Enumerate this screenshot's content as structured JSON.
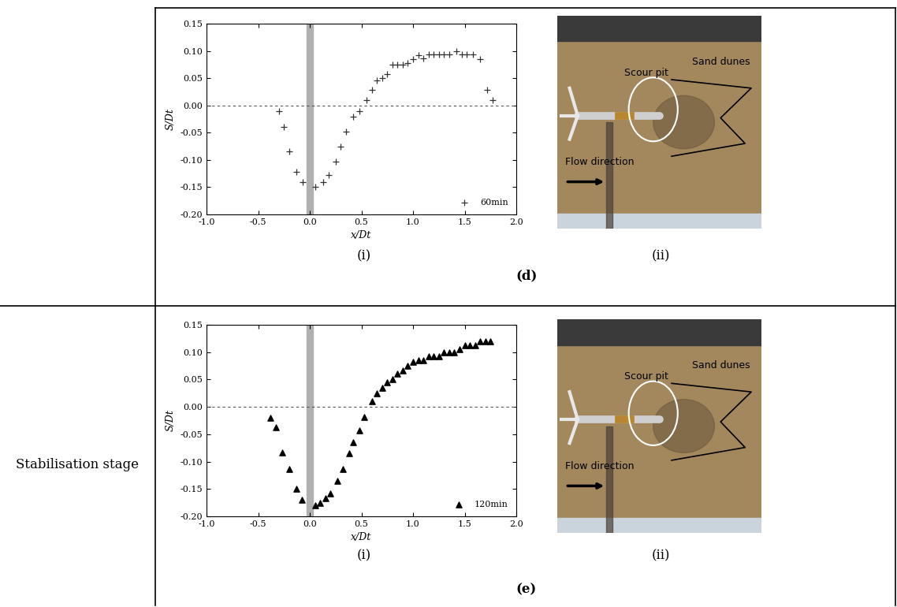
{
  "chart_data": [
    {
      "type": "scatter",
      "x_label": "x/Dt",
      "y_label": "S/Dt",
      "xlim": [
        -1.0,
        2.0
      ],
      "ylim": [
        -0.2,
        0.15
      ],
      "xticks": [
        {
          "value": -1.0,
          "label": "-1.0"
        },
        {
          "value": -0.5,
          "label": "-0.5"
        },
        {
          "value": 0.0,
          "label": "0.0"
        },
        {
          "value": 0.5,
          "label": "0.5"
        },
        {
          "value": 1.0,
          "label": "1.0"
        },
        {
          "value": 1.5,
          "label": "1.5"
        },
        {
          "value": 2.0,
          "label": "2.0"
        }
      ],
      "yticks": [
        {
          "value": -0.2,
          "label": "-0.20"
        },
        {
          "value": -0.15,
          "label": "-0.15"
        },
        {
          "value": -0.1,
          "label": "-0.10"
        },
        {
          "value": -0.05,
          "label": "-0.05"
        },
        {
          "value": 0.0,
          "label": "0.00"
        },
        {
          "value": 0.05,
          "label": "0.05"
        },
        {
          "value": 0.1,
          "label": "0.10"
        },
        {
          "value": 0.15,
          "label": "0.15"
        }
      ],
      "legend": "lower right",
      "series": [
        {
          "name": "60min",
          "color": "#333333",
          "marker": "plus",
          "x": [
            -0.3,
            -0.25,
            -0.2,
            -0.13,
            -0.07,
            0.05,
            0.13,
            0.18,
            0.25,
            0.3,
            0.35,
            0.42,
            0.48,
            0.55,
            0.6,
            0.65,
            0.7,
            0.75,
            0.8,
            0.85,
            0.9,
            0.95,
            1.0,
            1.05,
            1.1,
            1.15,
            1.2,
            1.25,
            1.3,
            1.35,
            1.42,
            1.47,
            1.52,
            1.58,
            1.65,
            1.72,
            1.77
          ],
          "values": [
            -0.01,
            -0.04,
            -0.085,
            -0.122,
            -0.14,
            -0.15,
            -0.14,
            -0.128,
            -0.103,
            -0.075,
            -0.048,
            -0.02,
            -0.01,
            0.01,
            0.028,
            0.046,
            0.05,
            0.057,
            0.075,
            0.075,
            0.075,
            0.078,
            0.085,
            0.092,
            0.087,
            0.093,
            0.093,
            0.093,
            0.093,
            0.093,
            0.1,
            0.093,
            0.093,
            0.093,
            0.085,
            0.028,
            0.01
          ]
        }
      ]
    },
    {
      "type": "scatter",
      "x_label": "x/Dt",
      "y_label": "S/Dt",
      "xlim": [
        -1.0,
        2.0
      ],
      "ylim": [
        -0.2,
        0.15
      ],
      "xticks": [
        {
          "value": -1.0,
          "label": "-1.0"
        },
        {
          "value": -0.5,
          "label": "-0.5"
        },
        {
          "value": 0.0,
          "label": "0.0"
        },
        {
          "value": 0.5,
          "label": "0.5"
        },
        {
          "value": 1.0,
          "label": "1.0"
        },
        {
          "value": 1.5,
          "label": "1.5"
        },
        {
          "value": 2.0,
          "label": "2.0"
        }
      ],
      "yticks": [
        {
          "value": -0.2,
          "label": "-0.20"
        },
        {
          "value": -0.15,
          "label": "-0.15"
        },
        {
          "value": -0.1,
          "label": "-0.10"
        },
        {
          "value": -0.05,
          "label": "-0.05"
        },
        {
          "value": 0.0,
          "label": "0.00"
        },
        {
          "value": 0.05,
          "label": "0.05"
        },
        {
          "value": 0.1,
          "label": "0.10"
        },
        {
          "value": 0.15,
          "label": "0.15"
        }
      ],
      "legend": "lower right",
      "series": [
        {
          "name": "120min",
          "color": "#000000",
          "marker": "triangle",
          "x": [
            -0.38,
            -0.33,
            -0.27,
            -0.2,
            -0.13,
            -0.08,
            0.05,
            0.1,
            0.15,
            0.2,
            0.27,
            0.32,
            0.38,
            0.42,
            0.48,
            0.53,
            0.6,
            0.65,
            0.7,
            0.75,
            0.8,
            0.85,
            0.9,
            0.95,
            1.0,
            1.05,
            1.1,
            1.15,
            1.2,
            1.25,
            1.3,
            1.35,
            1.4,
            1.45,
            1.5,
            1.55,
            1.6,
            1.65,
            1.7,
            1.75
          ],
          "values": [
            -0.02,
            -0.037,
            -0.083,
            -0.113,
            -0.15,
            -0.17,
            -0.18,
            -0.175,
            -0.167,
            -0.158,
            -0.135,
            -0.113,
            -0.085,
            -0.065,
            -0.043,
            -0.018,
            0.01,
            0.025,
            0.035,
            0.045,
            0.05,
            0.06,
            0.067,
            0.075,
            0.083,
            0.085,
            0.085,
            0.093,
            0.093,
            0.093,
            0.1,
            0.1,
            0.1,
            0.105,
            0.113,
            0.113,
            0.113,
            0.12,
            0.12,
            0.12
          ]
        }
      ]
    }
  ],
  "rows": [
    {
      "panel": "(d)",
      "stage": null,
      "chart_label": "(i)",
      "photo_label": "(ii)",
      "photo_texts": {
        "scour": "Scour pit",
        "dunes": "Sand dunes",
        "flow": "Flow direction"
      }
    },
    {
      "panel": "(e)",
      "stage": "Stabilisation stage",
      "chart_label": "(i)",
      "photo_label": "(ii)",
      "photo_texts": {
        "scour": "Scour pit",
        "dunes": "Sand dunes",
        "flow": "Flow direction"
      }
    }
  ]
}
